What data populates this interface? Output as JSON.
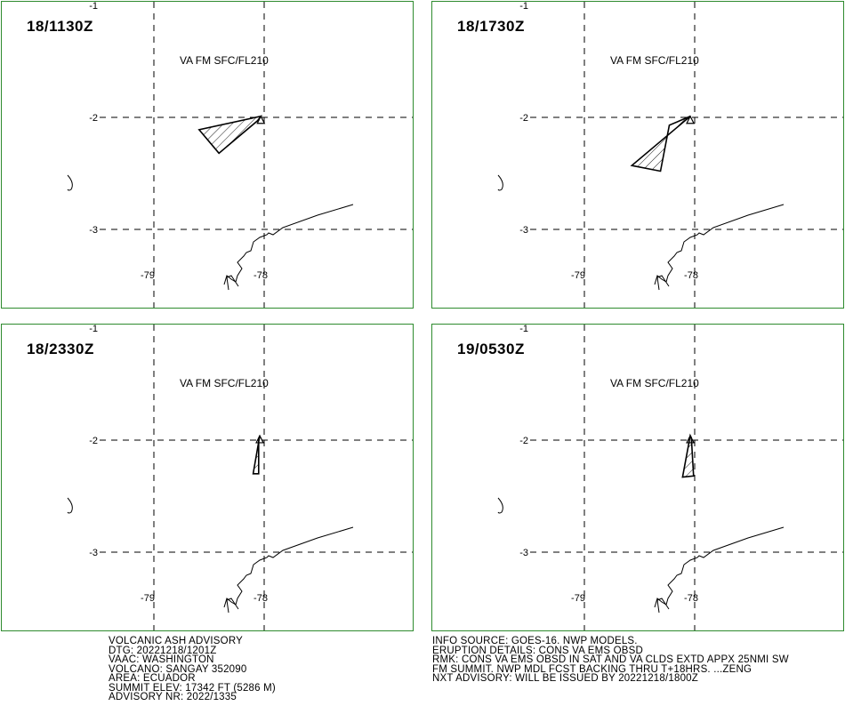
{
  "panels": [
    {
      "time": "18/1130Z",
      "layer": "VA FM SFC/FL210",
      "ash_polygon": [
        [
          -78.59,
          -2.11
        ],
        [
          -78.41,
          -2.32
        ],
        [
          -78.06,
          -2.03
        ],
        [
          -78.03,
          -1.99
        ]
      ]
    },
    {
      "time": "18/1730Z",
      "layer": "VA FM SFC/FL210",
      "ash_polygon": [
        [
          -78.57,
          -2.43
        ],
        [
          -78.31,
          -2.48
        ],
        [
          -78.23,
          -2.07
        ],
        [
          -78.04,
          -1.99
        ]
      ]
    },
    {
      "time": "18/2330Z",
      "layer": "VA FM SFC/FL210",
      "ash_polygon": [
        [
          -78.1,
          -2.3
        ],
        [
          -78.05,
          -2.3
        ],
        [
          -78.05,
          -1.99
        ],
        [
          -78.04,
          -1.96
        ]
      ]
    },
    {
      "time": "19/0530Z",
      "layer": "VA FM SFC/FL210",
      "ash_polygon": [
        [
          -78.11,
          -2.33
        ],
        [
          -78.01,
          -2.32
        ],
        [
          -78.03,
          -1.98
        ],
        [
          -78.04,
          -1.96
        ]
      ]
    }
  ],
  "map": {
    "lat_labels": [
      "-1",
      "-2",
      "-3"
    ],
    "lon_labels": [
      "-79",
      "-78"
    ]
  },
  "advisory_left": {
    "line1": "VOLCANIC ASH ADVISORY",
    "line2": "DTG: 20221218/1201Z",
    "line3": "VAAC: WASHINGTON",
    "line4": "VOLCANO: SANGAY 352090",
    "line5": "AREA: ECUADOR",
    "line6": "SUMMIT ELEV: 17342 FT (5286 M)",
    "line7": "ADVISORY NR: 2022/1335"
  },
  "advisory_right": {
    "line1": "INFO SOURCE: GOES-16. NWP MODELS.",
    "line2": "ERUPTION DETAILS: CONS VA EMS OBSD",
    "line3": "RMK: CONS VA EMS OBSD IN SAT AND VA CLDS EXTD APPX 25NMI SW",
    "line4": "FM SUMMIT. NWP MDL FCST BACKING THRU T+18HRS. ...ZENG",
    "line5": "NXT ADVISORY: WILL BE ISSUED BY 20221218/1800Z"
  },
  "colors": {
    "panel_border": "#2e8b2e",
    "lines": "#000000"
  }
}
